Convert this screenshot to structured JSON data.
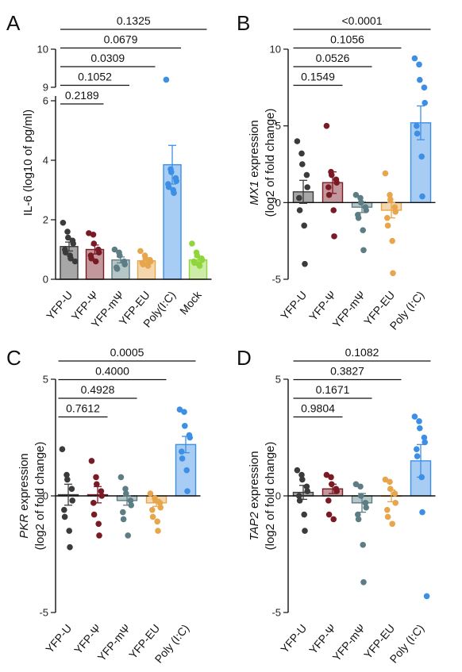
{
  "colors": {
    "YFP-U": "#3b3b3b",
    "YFP-Ψ": "#7a1a24",
    "YFP-mΨ": "#5c7d83",
    "YFP-EU": "#e8a64c",
    "Poly(I:C)": "#3d8fe6",
    "Mock": "#8fd63a"
  },
  "chart_data": [
    {
      "panel": "A",
      "type": "bar",
      "ylabel": "IL-6 (log10 of pg/ml)",
      "y_axis_break": true,
      "ylim": [
        0,
        10
      ],
      "yticks": [
        0,
        2,
        4,
        6,
        9,
        10
      ],
      "categories": [
        "YFP-U",
        "YFP-Ψ",
        "YFP-mΨ",
        "YFP-EU",
        "Poly(I:C)",
        "Mock"
      ],
      "means": [
        1.1,
        1.0,
        0.65,
        0.62,
        3.85,
        0.65
      ],
      "sem": [
        0.15,
        0.15,
        0.1,
        0.08,
        0.65,
        0.1
      ],
      "points": [
        [
          1.9,
          1.6,
          1.4,
          1.3,
          1.2,
          1.0,
          0.9,
          0.8,
          0.7,
          0.6
        ],
        [
          1.55,
          1.5,
          1.2,
          1.0,
          0.9,
          0.8,
          0.7,
          0.6
        ],
        [
          1.0,
          0.9,
          0.8,
          0.6,
          0.5,
          0.4,
          0.35
        ],
        [
          0.95,
          0.8,
          0.7,
          0.65,
          0.6,
          0.55,
          0.5,
          0.5,
          0.45
        ],
        [
          9.2,
          3.7,
          3.6,
          3.4,
          3.3,
          3.2,
          3.1,
          3.0,
          2.9
        ],
        [
          1.2,
          0.9,
          0.8,
          0.7,
          0.65,
          0.6,
          0.55,
          0.5,
          0.45
        ]
      ],
      "comparisons": [
        {
          "p": "0.2189",
          "from": 0,
          "to": 1
        },
        {
          "p": "0.1052",
          "from": 0,
          "to": 2
        },
        {
          "p": "0.0309",
          "from": 0,
          "to": 3
        },
        {
          "p": "0.0679",
          "from": 0,
          "to": 4
        },
        {
          "p": "0.1325",
          "from": 0,
          "to": 5
        }
      ]
    },
    {
      "panel": "B",
      "type": "bar",
      "ylabel_gene": "MX1",
      "ylabel_rest": " expression",
      "ylabel2": "(log2 of fold change)",
      "ylim": [
        -5,
        10
      ],
      "yticks": [
        -5,
        0,
        5,
        10
      ],
      "categories": [
        "YFP-U",
        "YFP-Ψ",
        "YFP-mΨ",
        "YFP-EU",
        "Poly (I:C)"
      ],
      "means": [
        0.7,
        1.3,
        -0.3,
        -0.5,
        5.2
      ],
      "sem": [
        0.75,
        0.7,
        0.35,
        0.5,
        1.1
      ],
      "points": [
        [
          4.0,
          3.2,
          2.5,
          1.8,
          1.0,
          0.3,
          -0.5,
          -1.5,
          -4.0
        ],
        [
          5.0,
          2.0,
          1.8,
          1.5,
          1.3,
          1.0,
          0.5,
          -0.5,
          -2.2
        ],
        [
          0.5,
          0.3,
          0.0,
          -0.3,
          -0.5,
          -0.8,
          -1.0,
          -1.8,
          -3.1
        ],
        [
          1.9,
          0.5,
          0.2,
          -0.3,
          -0.6,
          -1.0,
          -1.5,
          -2.5,
          -4.6
        ],
        [
          9.4,
          9.0,
          8.0,
          7.5,
          6.5,
          5.0,
          4.5,
          3.0,
          0.4
        ]
      ],
      "comparisons": [
        {
          "p": "0.1549",
          "from": 0,
          "to": 1
        },
        {
          "p": "0.0526",
          "from": 0,
          "to": 2
        },
        {
          "p": "0.1056",
          "from": 0,
          "to": 3
        },
        {
          "p": "<0.0001",
          "from": 0,
          "to": 4
        }
      ]
    },
    {
      "panel": "C",
      "type": "bar",
      "ylabel_gene": "PKR",
      "ylabel_rest": " expression",
      "ylabel2": "(log2 of fold change)",
      "ylim": [
        -5,
        5
      ],
      "yticks": [
        -5,
        0,
        5
      ],
      "categories": [
        "YFP-U",
        "YFP-Ψ",
        "YFP-mΨ",
        "YFP-EU",
        "Poly (I:C)"
      ],
      "means": [
        0.05,
        0.05,
        -0.2,
        -0.3,
        2.2
      ],
      "sem": [
        0.45,
        0.35,
        0.2,
        0.15,
        0.35
      ],
      "points": [
        [
          2.0,
          0.9,
          0.7,
          0.3,
          -0.2,
          -0.6,
          -0.9,
          -1.5,
          -2.2
        ],
        [
          1.5,
          0.8,
          0.5,
          0.2,
          0.0,
          -0.3,
          -0.8,
          -1.2,
          -1.7
        ],
        [
          0.8,
          0.3,
          0.1,
          -0.2,
          -0.4,
          -0.7,
          -1.0,
          -1.7
        ],
        [
          0.1,
          -0.1,
          -0.2,
          -0.3,
          -0.5,
          -0.6,
          -0.9,
          -1.1,
          -1.5
        ],
        [
          3.7,
          3.6,
          3.0,
          2.6,
          2.5,
          1.9,
          1.6,
          1.1,
          0.2
        ]
      ],
      "comparisons": [
        {
          "p": "0.7612",
          "from": 0,
          "to": 1
        },
        {
          "p": "0.4928",
          "from": 0,
          "to": 2
        },
        {
          "p": "0.4000",
          "from": 0,
          "to": 3
        },
        {
          "p": "0.0005",
          "from": 0,
          "to": 4
        }
      ]
    },
    {
      "panel": "D",
      "type": "bar",
      "ylabel_gene": "TAP2",
      "ylabel_rest": " expression",
      "ylabel2": "(log2 of fold change)",
      "ylim": [
        -5,
        5
      ],
      "yticks": [
        -5,
        0,
        5
      ],
      "categories": [
        "YFP-U",
        "YFP-Ψ",
        "YFP-mΨ",
        "YFP-EU",
        "Poly (I:C)"
      ],
      "means": [
        0.15,
        0.3,
        -0.3,
        0.0,
        1.5
      ],
      "sem": [
        0.3,
        0.2,
        0.4,
        0.25,
        0.7
      ],
      "points": [
        [
          1.1,
          0.9,
          0.7,
          0.4,
          0.2,
          0.0,
          -0.2,
          -0.8,
          -1.5
        ],
        [
          0.9,
          0.8,
          0.5,
          0.3,
          0.2,
          -0.2,
          -0.8,
          -1.0
        ],
        [
          0.5,
          0.4,
          0.0,
          -0.3,
          -0.5,
          -0.8,
          -1.0,
          -2.1,
          -3.7
        ],
        [
          0.7,
          0.6,
          0.3,
          0.1,
          -0.3,
          -0.6,
          -0.9,
          -1.2
        ],
        [
          3.4,
          3.2,
          2.9,
          2.5,
          2.3,
          2.0,
          1.7,
          0.8,
          -0.7,
          -4.3
        ]
      ],
      "comparisons": [
        {
          "p": "0.9804",
          "from": 0,
          "to": 1
        },
        {
          "p": "0.1671",
          "from": 0,
          "to": 2
        },
        {
          "p": "0.3827",
          "from": 0,
          "to": 3
        },
        {
          "p": "0.1082",
          "from": 0,
          "to": 4
        }
      ]
    }
  ]
}
